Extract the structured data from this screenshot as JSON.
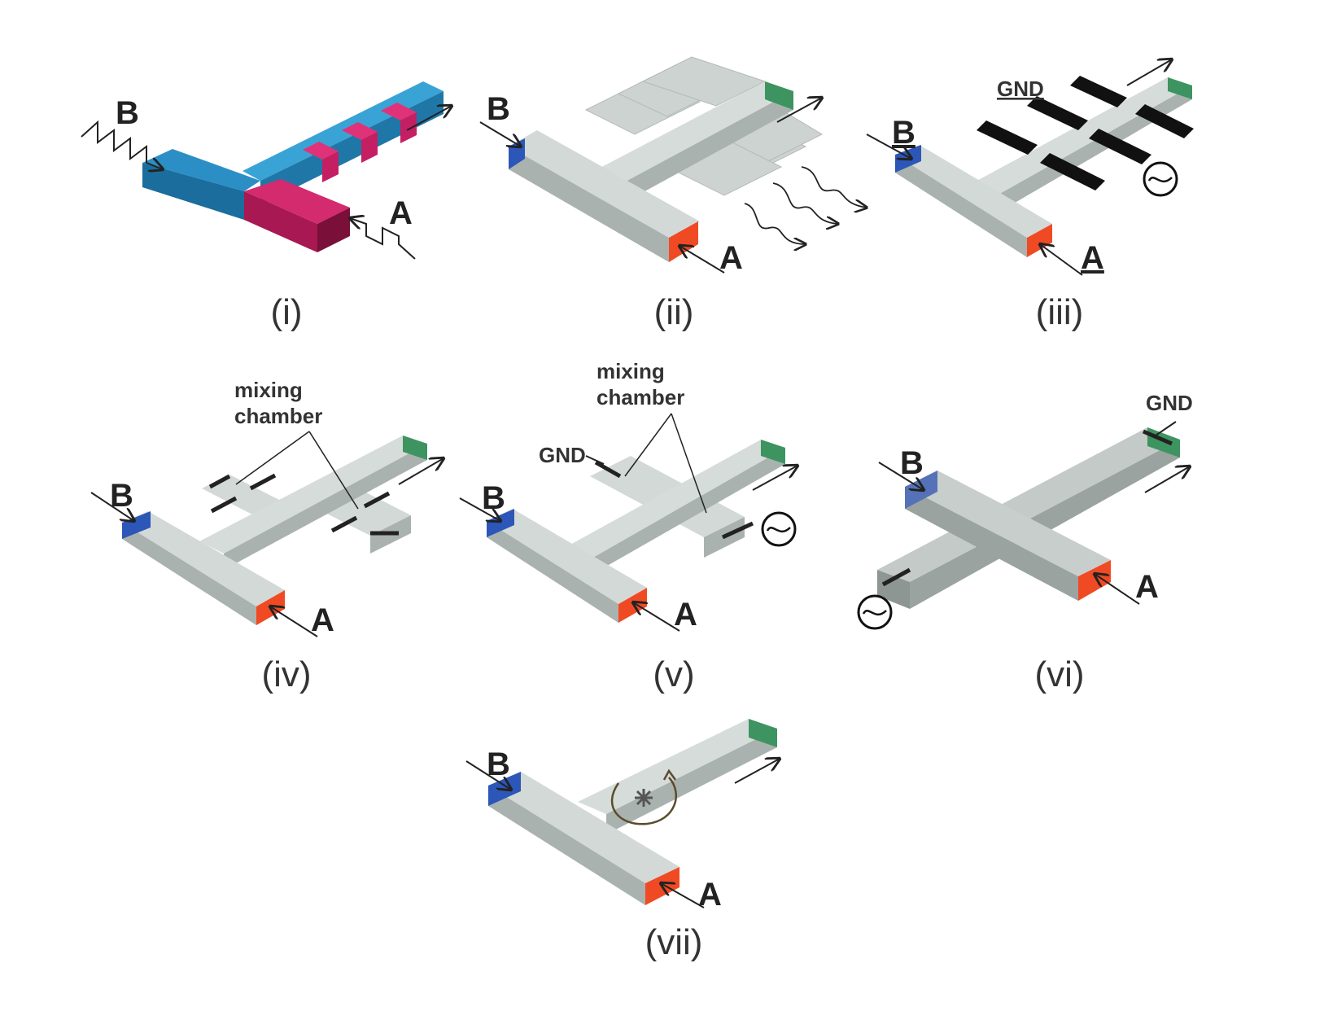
{
  "colors": {
    "channel_fill": "#c9cfcd",
    "channel_top": "#d6dcd9",
    "channel_dark": "#9fa7a4",
    "stream_a": "#f04a24",
    "stream_b": "#2c56b8",
    "outlet": "#3e9460",
    "panel_i_blue": "#1f77a8",
    "panel_i_magenta": "#c41f63",
    "electrode": "#111111",
    "rotor": "#5a4d2c"
  },
  "panels": [
    {
      "id": "i",
      "label": "(i)",
      "inlet_a": "A",
      "inlet_b": "B"
    },
    {
      "id": "ii",
      "label": "(ii)",
      "inlet_a": "A",
      "inlet_b": "B"
    },
    {
      "id": "iii",
      "label": "(iii)",
      "inlet_a": "A",
      "inlet_b": "B",
      "ground": "GND",
      "source_icon": "ac-source-icon"
    },
    {
      "id": "iv",
      "label": "(iv)",
      "inlet_a": "A",
      "inlet_b": "B",
      "annotation_line1": "mixing",
      "annotation_line2": "chamber"
    },
    {
      "id": "v",
      "label": "(v)",
      "inlet_a": "A",
      "inlet_b": "B",
      "annotation_line1": "mixing",
      "annotation_line2": "chamber",
      "ground": "GND",
      "source_icon": "ac-source-icon"
    },
    {
      "id": "vi",
      "label": "(vi)",
      "inlet_a": "A",
      "inlet_b": "B",
      "ground": "GND",
      "source_icon": "ac-source-icon"
    },
    {
      "id": "vii",
      "label": "(vii)",
      "inlet_a": "A",
      "inlet_b": "B",
      "mixer_icon": "rotating-stirrer-icon"
    }
  ]
}
